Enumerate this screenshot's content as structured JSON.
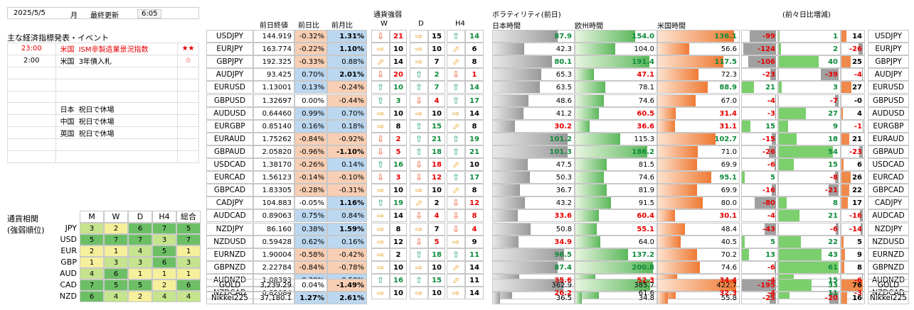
{
  "date": "2025/5/5",
  "weekday": "月",
  "last_update_label": "最終更新",
  "time": "6:05",
  "events_title": "主な経済指標発表・イベント",
  "events": [
    {
      "time": "23:00",
      "country": "米国",
      "name": "ISM非製造業景況指数",
      "stars": "★★",
      "hi": true
    },
    {
      "time": "2:00",
      "country": "米国",
      "name": "3年債入札",
      "stars": "☆",
      "hi": false
    },
    {
      "time": "",
      "country": "",
      "name": "",
      "stars": "",
      "hi": false
    },
    {
      "time": "",
      "country": "",
      "name": "",
      "stars": "",
      "hi": false
    },
    {
      "time": "",
      "country": "",
      "name": "",
      "stars": "",
      "hi": false
    },
    {
      "time": "",
      "country": "日本",
      "name": "祝日で休場",
      "stars": "",
      "hi": false
    },
    {
      "time": "",
      "country": "中国",
      "name": "祝日で休場",
      "stars": "",
      "hi": false
    },
    {
      "time": "",
      "country": "英国",
      "name": "祝日で休場",
      "stars": "",
      "hi": false
    },
    {
      "time": "",
      "country": "",
      "name": "",
      "stars": "",
      "hi": false
    },
    {
      "time": "",
      "country": "",
      "name": "",
      "stars": "",
      "hi": false
    }
  ],
  "corr": {
    "title1": "通貨相関",
    "title2": "(強弱順位)",
    "headers": [
      "M",
      "W",
      "D",
      "H4",
      "総合"
    ],
    "rows": [
      {
        "cur": "JPY",
        "v": [
          "3",
          "2",
          "6",
          "7",
          "5"
        ]
      },
      {
        "cur": "USD",
        "v": [
          "5",
          "7",
          "7",
          "3",
          "7"
        ]
      },
      {
        "cur": "EUR",
        "v": [
          "2",
          "1",
          "4",
          "5",
          "1"
        ]
      },
      {
        "cur": "GBP",
        "v": [
          "1",
          "3",
          "3",
          "6",
          "3"
        ]
      },
      {
        "cur": "AUD",
        "v": [
          "4",
          "6",
          "1",
          "1",
          "1"
        ]
      },
      {
        "cur": "CAD",
        "v": [
          "7",
          "5",
          "5",
          "2",
          "6"
        ]
      },
      {
        "cur": "NZD",
        "v": [
          "6",
          "4",
          "2",
          "4",
          "4"
        ]
      }
    ]
  },
  "headers": {
    "close": "前日終値",
    "dchg": "前日比",
    "mchg": "前月比",
    "strength": "通貨強弱",
    "W": "W",
    "D": "D",
    "H4": "H4",
    "vol": "ボラティリティ(前日)",
    "jp": "日本時間",
    "eu": "欧州時間",
    "us": "米国時間",
    "inc": "(前々日比増減)"
  },
  "rows": [
    {
      "p": "USDJPY",
      "close": "144.919",
      "d": "-0.32%",
      "m": "1.31%",
      "w": "dn",
      "wn": "21",
      "dd": "rt",
      "dn": "15",
      "h": "up",
      "hn": "14",
      "jp": "87.9",
      "eu": "154.0",
      "us": "136.1",
      "i1": "-99",
      "i2": "1",
      "i3": "14"
    },
    {
      "p": "EURJPY",
      "close": "163.774",
      "d": "-0.22%",
      "m": "1.10%",
      "w": "rt",
      "wn": "10",
      "dd": "rt",
      "dn": "10",
      "h": "ur",
      "hn": "6",
      "jp": "42.3",
      "eu": "104.0",
      "us": "56.6",
      "i1": "-124",
      "i2": "2",
      "i3": "-26"
    },
    {
      "p": "GBPJPY",
      "close": "192.325",
      "d": "-0.33%",
      "m": "0.88%",
      "w": "ur",
      "wn": "14",
      "dd": "rt",
      "dn": "7",
      "h": "ur",
      "hn": "8",
      "jp": "80.1",
      "eu": "191.4",
      "us": "117.5",
      "i1": "-106",
      "i2": "40",
      "i3": "25"
    },
    {
      "p": "AUDJPY",
      "close": "93.425",
      "d": "0.70%",
      "m": "2.01%",
      "w": "dn",
      "wn": "20",
      "dd": "up",
      "dn": "2",
      "h": "dn",
      "hn": "1",
      "jp": "65.3",
      "eu": "47.1",
      "us": "72.3",
      "i1": "-23",
      "i2": "-39",
      "i3": "-4"
    },
    {
      "p": "EURUSD",
      "close": "1.13001",
      "d": "0.13%",
      "m": "-0.24%",
      "w": "up",
      "wn": "10",
      "dd": "up",
      "dn": "7",
      "h": "up",
      "hn": "14",
      "jp": "63.5",
      "eu": "78.1",
      "us": "88.9",
      "i1": "21",
      "i2": "3",
      "i3": "27"
    },
    {
      "p": "GBPUSD",
      "close": "1.32697",
      "d": "0.00%",
      "m": "-0.44%",
      "w": "up",
      "wn": "3",
      "dd": "dn",
      "dn": "4",
      "h": "up",
      "hn": "17",
      "jp": "48.6",
      "eu": "74.6",
      "us": "67.0",
      "i1": "-4",
      "i2": "-7",
      "i3": "-0"
    },
    {
      "p": "AUDUSD",
      "close": "0.64460",
      "d": "0.99%",
      "m": "0.70%",
      "w": "rt",
      "wn": "10",
      "dd": "rt",
      "dn": "10",
      "h": "rt",
      "hn": "14",
      "jp": "41.2",
      "eu": "60.5",
      "us": "31.4",
      "i1": "-3",
      "i2": "27",
      "i3": "4"
    },
    {
      "p": "EURGBP",
      "close": "0.85140",
      "d": "0.16%",
      "m": "0.18%",
      "w": "rt",
      "wn": "8",
      "dd": "up",
      "dn": "15",
      "h": "ur",
      "hn": "8",
      "jp": "30.2",
      "eu": "36.6",
      "us": "31.1",
      "i1": "15",
      "i2": "9",
      "i3": "-1"
    },
    {
      "p": "EURAUD",
      "close": "1.75262",
      "d": "-0.84%",
      "m": "-0.92%",
      "w": "dn",
      "wn": "2",
      "dd": "up",
      "dn": "21",
      "h": "up",
      "hn": "19",
      "jp": "101.2",
      "eu": "115.3",
      "us": "102.7",
      "i1": "-15",
      "i2": "18",
      "i3": "21"
    },
    {
      "p": "GBPAUD",
      "close": "2.05820",
      "d": "-0.96%",
      "m": "-1.10%",
      "w": "dn",
      "wn": "5",
      "dd": "up",
      "dn": "18",
      "h": "up",
      "hn": "21",
      "jp": "101.3",
      "eu": "186.2",
      "us": "71.0",
      "i1": "-26",
      "i2": "54",
      "i3": "-23"
    },
    {
      "p": "USDCAD",
      "close": "1.38170",
      "d": "-0.26%",
      "m": "0.14%",
      "w": "up",
      "wn": "16",
      "dd": "dn",
      "dn": "18",
      "h": "ur",
      "hn": "10",
      "jp": "47.5",
      "eu": "81.5",
      "us": "69.9",
      "i1": "-6",
      "i2": "15",
      "i3": "6"
    },
    {
      "p": "EURCAD",
      "close": "1.56123",
      "d": "-0.14%",
      "m": "-0.10%",
      "w": "dn",
      "wn": "3",
      "dd": "dn",
      "dn": "12",
      "h": "up",
      "hn": "17",
      "jp": "50.3",
      "eu": "74.6",
      "us": "95.1",
      "i1": "5",
      "i2": "-8",
      "i3": "26"
    },
    {
      "p": "GBPCAD",
      "close": "1.83305",
      "d": "-0.28%",
      "m": "-0.31%",
      "w": "rt",
      "wn": "10",
      "dd": "rt",
      "dn": "10",
      "h": "ur",
      "hn": "8",
      "jp": "36.7",
      "eu": "81.9",
      "us": "69.9",
      "i1": "-16",
      "i2": "-21",
      "i3": "22"
    },
    {
      "p": "CADJPY",
      "close": "104.883",
      "d": "-0.05%",
      "m": "1.16%",
      "w": "up",
      "wn": "19",
      "dd": "ur",
      "dn": "2",
      "h": "dn",
      "hn": "12",
      "jp": "43.2",
      "eu": "91.5",
      "us": "80.0",
      "i1": "-80",
      "i2": "8",
      "i3": "17"
    },
    {
      "p": "AUDCAD",
      "close": "0.89063",
      "d": "0.75%",
      "m": "0.84%",
      "w": "rt",
      "wn": "14",
      "dd": "dn",
      "dn": "4",
      "h": "dn",
      "hn": "8",
      "jp": "33.6",
      "eu": "60.4",
      "us": "30.1",
      "i1": "-4",
      "i2": "21",
      "i3": "-16"
    },
    {
      "p": "NZDJPY",
      "close": "86.160",
      "d": "0.38%",
      "m": "1.59%",
      "w": "rt",
      "wn": "8",
      "dd": "rt",
      "dn": "7",
      "h": "dn",
      "hn": "4",
      "jp": "50.8",
      "eu": "55.1",
      "us": "48.4",
      "i1": "-43",
      "i2": "-6",
      "i3": "-14"
    },
    {
      "p": "NZDUSD",
      "close": "0.59428",
      "d": "0.62%",
      "m": "0.16%",
      "w": "rt",
      "wn": "12",
      "dd": "dn",
      "dn": "5",
      "h": "rt",
      "hn": "9",
      "jp": "34.9",
      "eu": "64.0",
      "us": "40.5",
      "i1": "5",
      "i2": "22",
      "i3": "5"
    },
    {
      "p": "EURNZD",
      "close": "1.90004",
      "d": "-0.58%",
      "m": "-0.42%",
      "w": "rt",
      "wn": "2",
      "dd": "up",
      "dn": "18",
      "h": "up",
      "hn": "11",
      "jp": "96.5",
      "eu": "137.2",
      "us": "70.2",
      "i1": "13",
      "i2": "43",
      "i3": "9"
    },
    {
      "p": "GBPNZD",
      "close": "2.22784",
      "d": "-0.84%",
      "m": "-0.78%",
      "w": "rt",
      "wn": "10",
      "dd": "rt",
      "dn": "10",
      "h": "ur",
      "hn": "14",
      "jp": "87.4",
      "eu": "200.8",
      "us": "74.6",
      "i1": "-6",
      "i2": "61",
      "i3": "8"
    },
    {
      "p": "AUDNZD",
      "close": "1.08393",
      "d": "0.30%",
      "m": "0.50%",
      "w": "up",
      "wn": "16",
      "dd": "up",
      "dn": "15",
      "h": "ur",
      "hn": "11",
      "jp": "35.6",
      "eu": "52.3",
      "us": "34.4",
      "i1": "-4",
      "i2": "15",
      "i3": "-6"
    },
    {
      "p": "NZDCAD",
      "close": "0.82084",
      "d": "0.34%",
      "m": "0.26%",
      "w": "rt",
      "wn": "10",
      "dd": "rt",
      "dn": "10",
      "h": "rt",
      "hn": "14",
      "jp": "26.2",
      "eu": "61.6",
      "us": "32.3",
      "i1": "-4",
      "i2": "11",
      "i3": "-3"
    }
  ],
  "extra": [
    {
      "p": "GOLD",
      "close": "3,239.29",
      "d": "0.04%",
      "m": "-1.49%",
      "jp": "362.9",
      "eu": "385.7",
      "us": "422.7",
      "i1": "-195",
      "i2": "33",
      "i3": "76"
    },
    {
      "p": "Nikkei225",
      "close": "37,180.1",
      "d": "1.27%",
      "m": "2.61%",
      "jp": "36.5",
      "eu": "34.8",
      "us": "55.8",
      "i1": "-25",
      "i2": "-20",
      "i3": "16"
    }
  ]
}
